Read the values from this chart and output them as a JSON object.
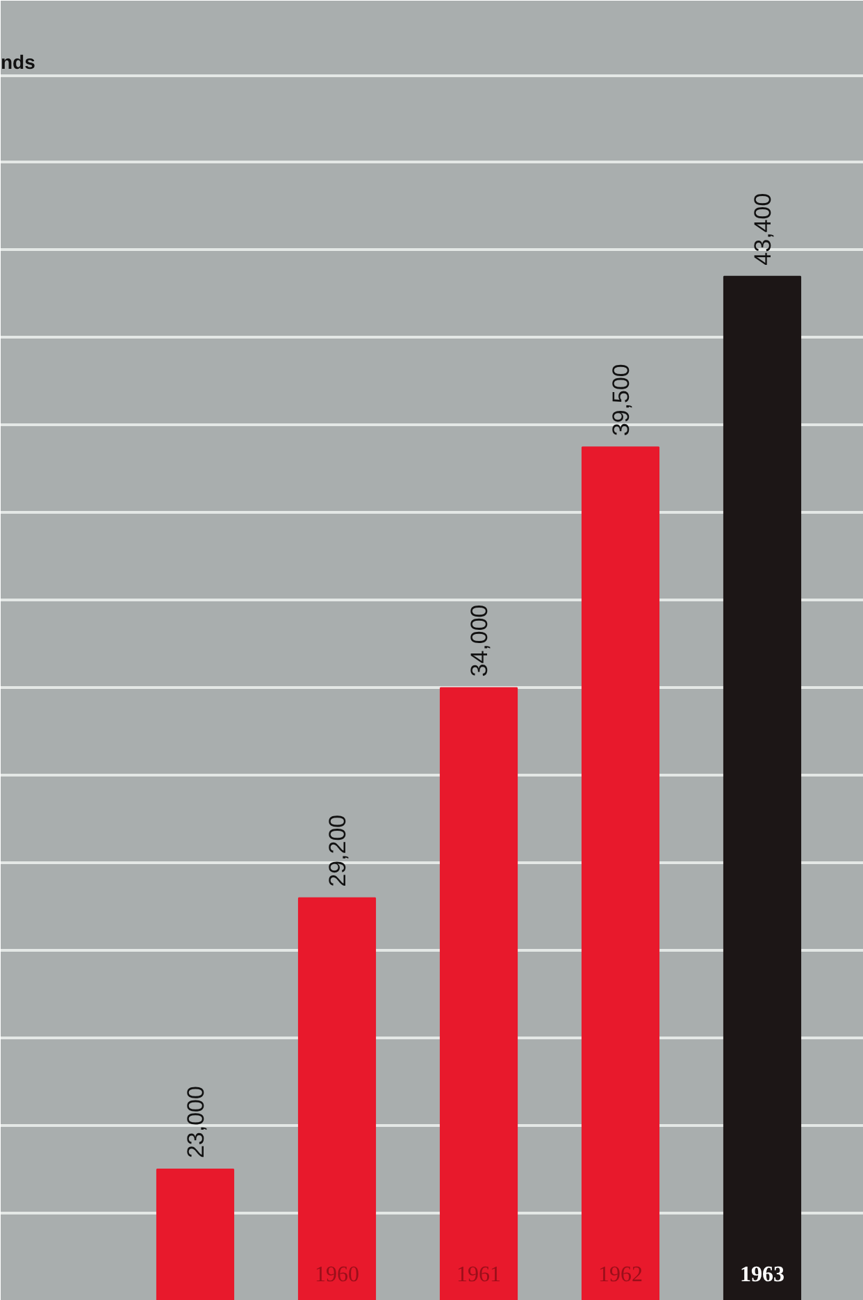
{
  "chart_data": {
    "type": "bar",
    "title": "nds",
    "categories": [
      null,
      "1960",
      "1961",
      "1962",
      "1963"
    ],
    "values": [
      23000,
      29200,
      34000,
      39500,
      43400
    ],
    "value_labels": [
      "23,000",
      "29,200",
      "34,000",
      "39,500",
      "43,400"
    ],
    "colors": [
      "#e8192c",
      "#e8192c",
      "#e8192c",
      "#e8192c",
      "#1c1616"
    ],
    "ylim": [
      20000,
      49700
    ],
    "yticks": [
      {
        "value": 22000,
        "label": null
      },
      {
        "value": 24000,
        "label": null
      },
      {
        "value": 26000,
        "label": null
      },
      {
        "value": 28000,
        "label": null
      },
      {
        "value": 30000,
        "label": null
      },
      {
        "value": 32000,
        "label": null
      },
      {
        "value": 34000,
        "label": null
      },
      {
        "value": 36000,
        "label": null
      },
      {
        "value": 38000,
        "label": null
      },
      {
        "value": 40000,
        "label": null
      },
      {
        "value": 42000,
        "label": null
      },
      {
        "value": 44000,
        "label": null
      },
      {
        "value": 46000,
        "label": null
      },
      {
        "value": 48000,
        "label": null
      }
    ],
    "grid": "y",
    "tick_labels": "x"
  }
}
